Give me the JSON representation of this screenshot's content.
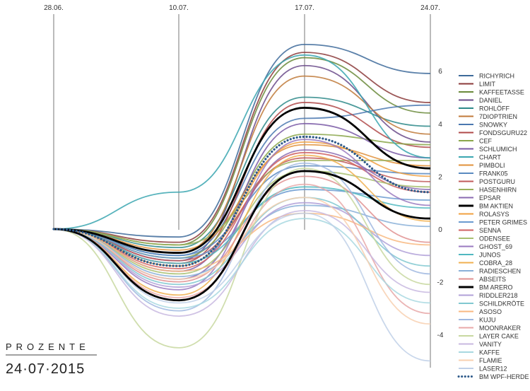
{
  "chart_data": {
    "type": "line",
    "title": "",
    "unit_label": "PROZENTE",
    "date_caption": "24·07·2015",
    "x": [
      "28.06.",
      "10.07.",
      "17.07.",
      "24.07."
    ],
    "ylim": [
      -5,
      7
    ],
    "yticks": [
      6,
      4,
      2,
      0,
      -2,
      -4
    ],
    "series": [
      {
        "name": "RICHYRICH",
        "color": "#3d6a9a",
        "values": [
          0,
          -0.3,
          7.0,
          5.9
        ]
      },
      {
        "name": "LIMIT",
        "color": "#8b3a3a",
        "values": [
          0,
          -0.5,
          6.7,
          4.8
        ]
      },
      {
        "name": "KAFFEETASSE",
        "color": "#6a8a3a",
        "values": [
          0,
          -0.6,
          6.5,
          4.4
        ]
      },
      {
        "name": "DANIEL",
        "color": "#6a4a8a",
        "values": [
          0,
          -1.2,
          6.2,
          3.3
        ]
      },
      {
        "name": "ROHLÖFF",
        "color": "#2e8a8a",
        "values": [
          0,
          -0.7,
          5.0,
          3.9
        ]
      },
      {
        "name": "7DIOPTRIEN",
        "color": "#c07a3a",
        "values": [
          0,
          -0.9,
          5.8,
          3.6
        ]
      },
      {
        "name": "SNOWKY",
        "color": "#4a78b0",
        "values": [
          0,
          -1.0,
          4.2,
          4.7
        ]
      },
      {
        "name": "FONDSGURU22",
        "color": "#b04a4a",
        "values": [
          0,
          -1.3,
          4.8,
          3.1
        ]
      },
      {
        "name": "CEF",
        "color": "#8aa64a",
        "values": [
          0,
          -1.1,
          3.6,
          3.2
        ]
      },
      {
        "name": "SCHLUMICH",
        "color": "#7a5aa6",
        "values": [
          0,
          -1.6,
          4.0,
          2.7
        ]
      },
      {
        "name": "CHART",
        "color": "#3aa6b0",
        "values": [
          0,
          1.4,
          6.6,
          2.7
        ]
      },
      {
        "name": "PIMBOLI",
        "color": "#e0903a",
        "values": [
          0,
          -0.8,
          3.2,
          2.4
        ]
      },
      {
        "name": "FRANK05",
        "color": "#5a8ac0",
        "values": [
          0,
          -1.0,
          2.4,
          2.1
        ]
      },
      {
        "name": "POSTGURU",
        "color": "#c05a5a",
        "values": [
          0,
          -1.2,
          2.7,
          1.8
        ]
      },
      {
        "name": "HASENHIRN",
        "color": "#9ab05a",
        "values": [
          0,
          -0.6,
          2.6,
          2.6
        ]
      },
      {
        "name": "EPSAR",
        "color": "#8a6ab0",
        "values": [
          0,
          -1.9,
          3.0,
          1.5
        ]
      },
      {
        "name": "BM AKTIEN",
        "color": "#000000",
        "values": [
          0,
          -0.9,
          4.6,
          2.3
        ]
      },
      {
        "name": "ROLASYS",
        "color": "#f0a040",
        "values": [
          0,
          -1.4,
          3.3,
          2.0
        ]
      },
      {
        "name": "PETER GRIMES",
        "color": "#6a9ad0",
        "values": [
          0,
          -1.1,
          1.5,
          1.1
        ]
      },
      {
        "name": "SENNA",
        "color": "#d06060",
        "values": [
          0,
          -1.5,
          2.9,
          1.4
        ]
      },
      {
        "name": "ODENSEE",
        "color": "#a8c070",
        "values": [
          0,
          -1.7,
          2.2,
          1.6
        ]
      },
      {
        "name": "GHOST_69",
        "color": "#9a7ac0",
        "values": [
          0,
          -2.3,
          3.4,
          0.9
        ]
      },
      {
        "name": "JUNOS",
        "color": "#50b8c0",
        "values": [
          0,
          -1.3,
          1.6,
          0.8
        ]
      },
      {
        "name": "COBRA_28",
        "color": "#f0b050",
        "values": [
          0,
          -2.5,
          2.8,
          0.3
        ]
      },
      {
        "name": "RADIESCHEN",
        "color": "#8ab0d8",
        "values": [
          0,
          -1.8,
          0.9,
          0.1
        ]
      },
      {
        "name": "ABSEITS",
        "color": "#e09090",
        "values": [
          0,
          -2.0,
          2.0,
          -0.5
        ]
      },
      {
        "name": "BM ARERO",
        "color": "#000000",
        "values": [
          0,
          -2.7,
          2.2,
          0.4
        ]
      },
      {
        "name": "RIDDLER218",
        "color": "#b0a0d8",
        "values": [
          0,
          -2.2,
          1.0,
          -1.0
        ]
      },
      {
        "name": "SCHILDKRÖTE",
        "color": "#80c8d0",
        "values": [
          0,
          -2.1,
          1.2,
          -1.4
        ]
      },
      {
        "name": "ASOSO",
        "color": "#f8b880",
        "values": [
          0,
          -1.6,
          0.6,
          -0.6
        ]
      },
      {
        "name": "KUJU",
        "color": "#a0b8e0",
        "values": [
          0,
          -3.1,
          2.5,
          -1.7
        ]
      },
      {
        "name": "MOONRAKER",
        "color": "#e8a8a8",
        "values": [
          0,
          -2.6,
          1.7,
          -3.2
        ]
      },
      {
        "name": "LAYER CAKE",
        "color": "#c8d8a0",
        "values": [
          0,
          -4.5,
          2.3,
          -2.1
        ]
      },
      {
        "name": "VANITY",
        "color": "#c8b8e0",
        "values": [
          0,
          -3.3,
          0.7,
          -2.4
        ]
      },
      {
        "name": "KAFFE",
        "color": "#a8d8e0",
        "values": [
          0,
          -3.0,
          0.4,
          -2.8
        ]
      },
      {
        "name": "FLAMIE",
        "color": "#f8d0b0",
        "values": [
          0,
          -1.9,
          1.2,
          -3.6
        ]
      },
      {
        "name": "LASER12",
        "color": "#c0d0e8",
        "values": [
          0,
          -2.8,
          0.6,
          -5.0
        ]
      },
      {
        "name": "BM WPF-HERDE",
        "color": "#2e5a8a",
        "dotted": true,
        "values": [
          0,
          -1.4,
          3.5,
          1.4
        ]
      }
    ]
  }
}
